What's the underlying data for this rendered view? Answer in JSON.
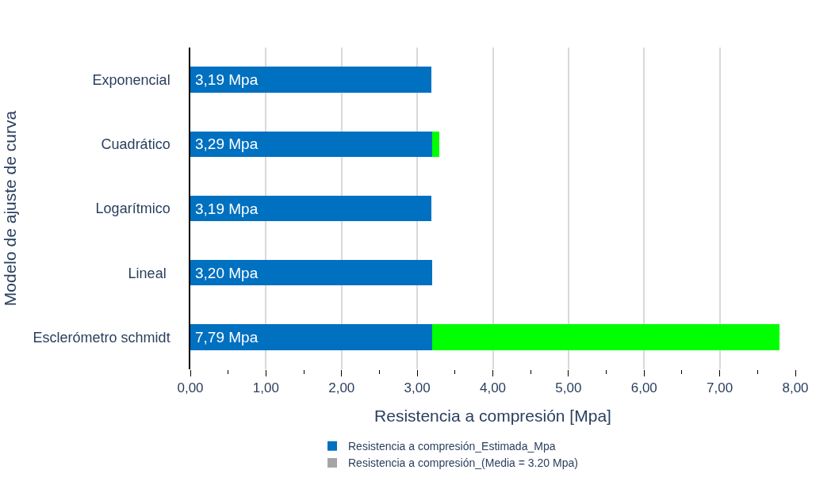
{
  "chart_data": {
    "type": "bar",
    "orientation": "horizontal",
    "stacked": true,
    "xlabel": "Resistencia a compresión [Mpa]",
    "ylabel": "Modelo de ajuste de curva",
    "categories": [
      "Exponencial",
      "Cuadrático",
      "Logarítmico",
      "Lineal ",
      "Esclerómetro schmidt"
    ],
    "series": [
      {
        "name": "Resistencia a compresión_Estimada_Mpa",
        "color": "#0070c0",
        "values": [
          3.19,
          3.2,
          3.19,
          3.2,
          3.2
        ]
      },
      {
        "color": "#00ff00",
        "values": [
          0,
          0.09,
          0,
          0,
          4.59
        ]
      },
      {
        "name": "Resistencia a compresión_(Media = 3.20 Mpa)",
        "color": "#a5a5a5",
        "values": [
          null,
          null,
          null,
          null,
          null
        ]
      }
    ],
    "xlim": [
      0,
      8
    ],
    "xticks": [
      {
        "value": 0,
        "label": "0,00"
      },
      {
        "value": 1,
        "label": "1,00"
      },
      {
        "value": 2,
        "label": "2,00"
      },
      {
        "value": 3,
        "label": "3,00"
      },
      {
        "value": 4,
        "label": "4,00"
      },
      {
        "value": 5,
        "label": "5,00"
      },
      {
        "value": 6,
        "label": "6,00"
      },
      {
        "value": 7,
        "label": "7,00"
      },
      {
        "value": 8,
        "label": "8,00"
      }
    ],
    "totals": [
      "3,19 Mpa",
      "3,29 Mpa",
      "3,19 Mpa",
      "3,20 Mpa",
      "7,79 Mpa"
    ],
    "grid": "x",
    "legend": "bottom"
  }
}
